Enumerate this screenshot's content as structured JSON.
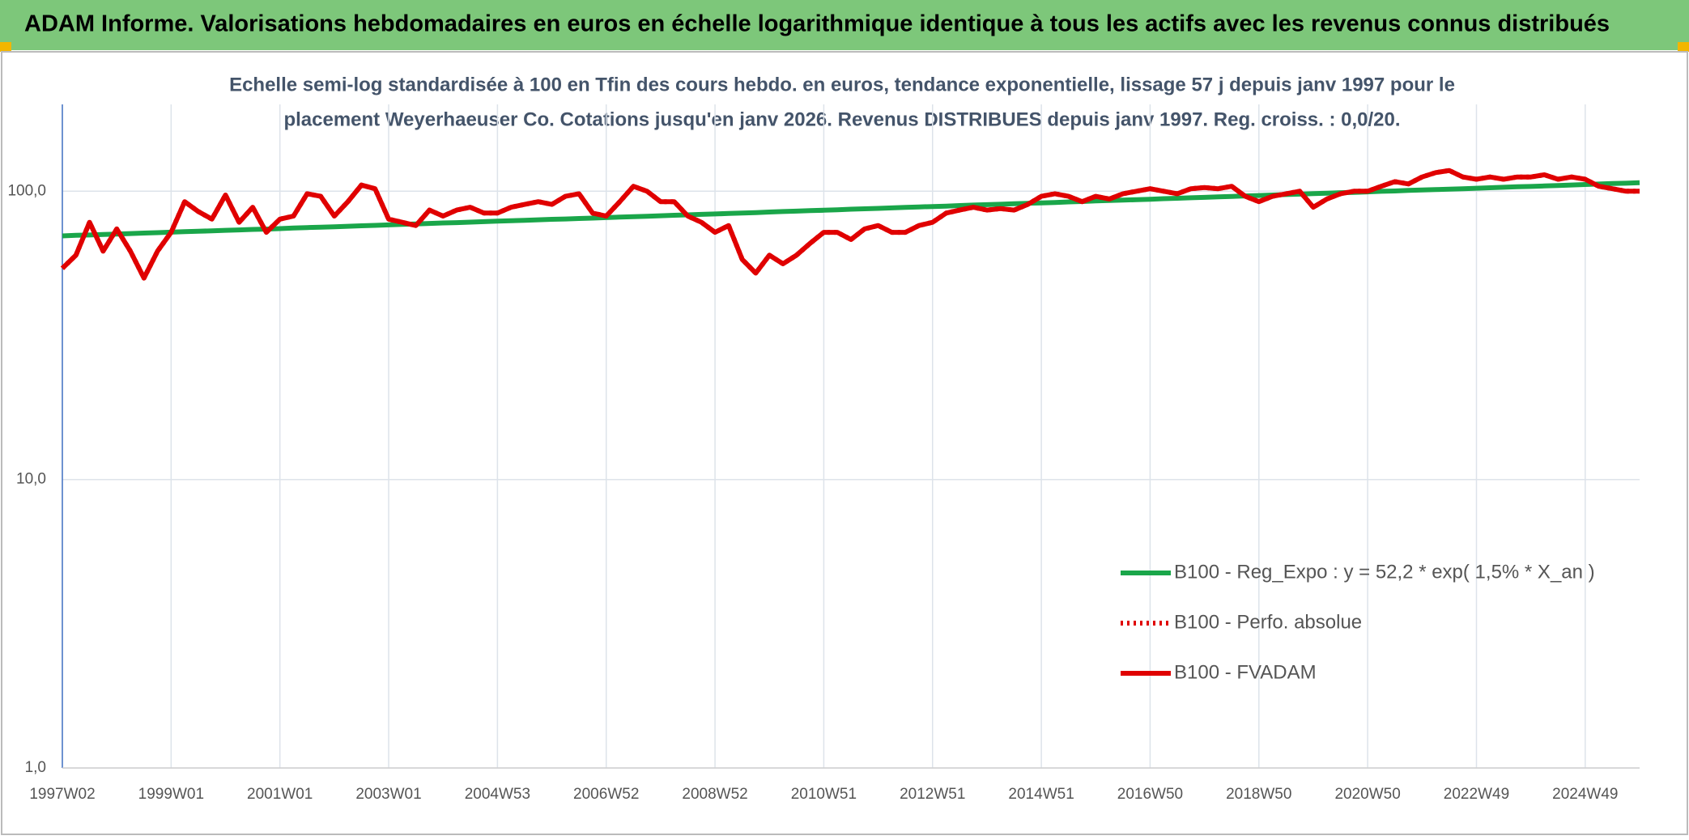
{
  "header": {
    "title": "ADAM Informe. Valorisations hebdomadaires en euros en échelle logarithmique identique à tous les actifs avec les revenus connus distribués"
  },
  "chart_data": {
    "type": "line",
    "subtitle": [
      "Echelle semi-log standardisée à 100 en Tfin des cours hebdo. en euros, tendance exponentielle, lissage 57 j depuis janv 1997 pour le",
      "placement Weyerhaeuser Co. Cotations jusqu'en janv 2026. Revenus DISTRIBUES depuis janv 1997. Reg. croiss. : 0,0/20."
    ],
    "categories": [
      "1997W02",
      null,
      null,
      null,
      null,
      null,
      null,
      null,
      "1999W01",
      null,
      null,
      null,
      null,
      null,
      null,
      null,
      "2001W01",
      null,
      null,
      null,
      null,
      null,
      null,
      null,
      "2003W01",
      null,
      null,
      null,
      null,
      null,
      null,
      null,
      "2004W53",
      null,
      null,
      null,
      null,
      null,
      null,
      null,
      "2006W52",
      null,
      null,
      null,
      null,
      null,
      null,
      null,
      "2008W52",
      null,
      null,
      null,
      null,
      null,
      null,
      null,
      "2010W51",
      null,
      null,
      null,
      null,
      null,
      null,
      null,
      "2012W51",
      null,
      null,
      null,
      null,
      null,
      null,
      null,
      "2014W51",
      null,
      null,
      null,
      null,
      null,
      null,
      null,
      "2016W50",
      null,
      null,
      null,
      null,
      null,
      null,
      null,
      "2018W50",
      null,
      null,
      null,
      null,
      null,
      null,
      null,
      "2020W50",
      null,
      null,
      null,
      null,
      null,
      null,
      null,
      "2022W49",
      null,
      null,
      null,
      null,
      null,
      null,
      null,
      "2024W49",
      null,
      null,
      null,
      null
    ],
    "series": [
      {
        "name": "B100 - Reg_Expo : y = 52,2 * exp( 1,5% *  X_an )",
        "color": "#1aa64a",
        "style": "solid",
        "values": [
          70.0,
          70.3,
          70.5,
          70.8,
          71.0,
          71.3,
          71.6,
          71.8,
          72.1,
          72.4,
          72.6,
          72.9,
          73.2,
          73.4,
          73.7,
          73.9,
          74.2,
          74.5,
          74.8,
          75.0,
          75.3,
          75.6,
          75.9,
          76.1,
          76.4,
          76.7,
          77.0,
          77.3,
          77.6,
          77.8,
          78.1,
          78.4,
          78.7,
          79.0,
          79.3,
          79.6,
          79.9,
          80.1,
          80.4,
          80.7,
          81.0,
          81.3,
          81.6,
          81.9,
          82.2,
          82.5,
          82.8,
          83.1,
          83.4,
          83.7,
          84.0,
          84.3,
          84.7,
          85.0,
          85.3,
          85.6,
          85.9,
          86.2,
          86.6,
          86.9,
          87.2,
          87.5,
          87.9,
          88.2,
          88.5,
          88.8,
          89.2,
          89.5,
          89.8,
          90.1,
          90.5,
          90.8,
          91.1,
          91.4,
          91.8,
          92.1,
          92.5,
          92.8,
          93.1,
          93.5,
          93.8,
          94.2,
          94.5,
          94.9,
          95.2,
          95.6,
          95.9,
          96.3,
          96.6,
          97.0,
          97.4,
          97.7,
          98.1,
          98.4,
          98.8,
          99.1,
          99.5,
          99.9,
          100.2,
          100.6,
          101.0,
          101.3,
          101.7,
          102.0,
          102.4,
          102.8,
          103.2,
          103.6,
          103.9,
          104.3,
          104.7,
          105.1,
          105.5,
          105.9,
          106.3,
          106.6,
          107.0
        ]
      },
      {
        "name": "B100 - Perfo. absolue",
        "color": "#e00000",
        "style": "dotted",
        "values": [
          54,
          60,
          78,
          62,
          74,
          62,
          50,
          62,
          72,
          92,
          85,
          80,
          97,
          78,
          88,
          72,
          80,
          82,
          98,
          96,
          82,
          92,
          105,
          102,
          80,
          78,
          76,
          86,
          82,
          86,
          88,
          84,
          84,
          88,
          90,
          92,
          90,
          96,
          98,
          84,
          82,
          92,
          104,
          100,
          92,
          92,
          82,
          78,
          72,
          76,
          58,
          52,
          60,
          56,
          60,
          66,
          72,
          72,
          68,
          74,
          76,
          72,
          72,
          76,
          78,
          84,
          86,
          88,
          86,
          87,
          86,
          90,
          96,
          98,
          96,
          92,
          96,
          94,
          98,
          100,
          102,
          100,
          98,
          102,
          103,
          102,
          104,
          96,
          92,
          96,
          98,
          100,
          88,
          94,
          98,
          100,
          100,
          104,
          108,
          106,
          112,
          116,
          118,
          112,
          110,
          112,
          110,
          112,
          112,
          114,
          110,
          112,
          110,
          104,
          102,
          100,
          100
        ]
      },
      {
        "name": "B100 - FVADAM",
        "color": "#e00000",
        "style": "solid",
        "values": [
          54,
          60,
          78,
          62,
          74,
          62,
          50,
          62,
          72,
          92,
          85,
          80,
          97,
          78,
          88,
          72,
          80,
          82,
          98,
          96,
          82,
          92,
          105,
          102,
          80,
          78,
          76,
          86,
          82,
          86,
          88,
          84,
          84,
          88,
          90,
          92,
          90,
          96,
          98,
          84,
          82,
          92,
          104,
          100,
          92,
          92,
          82,
          78,
          72,
          76,
          58,
          52,
          60,
          56,
          60,
          66,
          72,
          72,
          68,
          74,
          76,
          72,
          72,
          76,
          78,
          84,
          86,
          88,
          86,
          87,
          86,
          90,
          96,
          98,
          96,
          92,
          96,
          94,
          98,
          100,
          102,
          100,
          98,
          102,
          103,
          102,
          104,
          96,
          92,
          96,
          98,
          100,
          88,
          94,
          98,
          100,
          100,
          104,
          108,
          106,
          112,
          116,
          118,
          112,
          110,
          112,
          110,
          112,
          112,
          114,
          110,
          112,
          110,
          104,
          102,
          100,
          100
        ]
      }
    ],
    "log_scale": true,
    "ylim": [
      1,
      200
    ],
    "yticks": [
      {
        "value": 1,
        "label": "1,0"
      },
      {
        "value": 10,
        "label": "10,0"
      },
      {
        "value": 100,
        "label": "100,0"
      }
    ],
    "grid": true,
    "legend": "lower right"
  }
}
